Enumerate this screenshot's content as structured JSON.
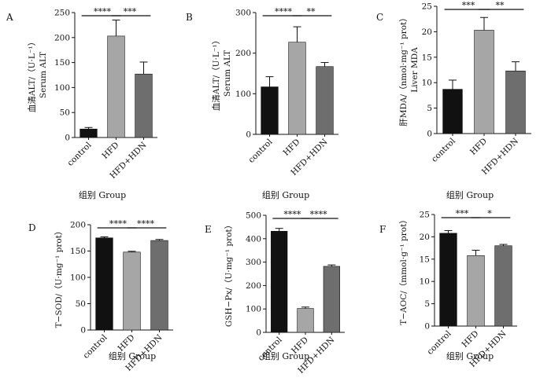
{
  "figure": {
    "bar_colors": [
      "#111111",
      "#a6a6a6",
      "#6e6e6e"
    ],
    "axis_color": "#111111"
  },
  "chart_data": [
    {
      "panel_label": "A",
      "type": "bar",
      "categories": [
        "control",
        "HFD",
        "HFD+HDN"
      ],
      "values": [
        17,
        203,
        127
      ],
      "errors": [
        3,
        32,
        24
      ],
      "ylim": [
        0,
        250
      ],
      "yticks": [
        0,
        50,
        100,
        150,
        200,
        250
      ],
      "ylabel_cn": "血清ALT/（U·L⁻¹）",
      "ylabel_en": "Serum ALT",
      "xlabel": "组别 Group",
      "significance": [
        {
          "from": 0,
          "to": 1,
          "label": "****"
        },
        {
          "from": 1,
          "to": 2,
          "label": "***"
        }
      ]
    },
    {
      "panel_label": "B",
      "type": "bar",
      "categories": [
        "control",
        "HFD",
        "HFD+HDN"
      ],
      "values": [
        117,
        227,
        167
      ],
      "errors": [
        25,
        38,
        10
      ],
      "ylim": [
        0,
        300
      ],
      "yticks": [
        0,
        100,
        200,
        300
      ],
      "ylabel_cn": "血清ALT/（U·L⁻¹）",
      "ylabel_en": "Serum ALT",
      "xlabel": "组别 Group",
      "significance": [
        {
          "from": 0,
          "to": 1,
          "label": "****"
        },
        {
          "from": 1,
          "to": 2,
          "label": "**"
        }
      ]
    },
    {
      "panel_label": "C",
      "type": "bar",
      "categories": [
        "control",
        "HFD",
        "HFD+HDN"
      ],
      "values": [
        8.7,
        20.3,
        12.3
      ],
      "errors": [
        1.8,
        2.5,
        1.8
      ],
      "ylim": [
        0,
        25
      ],
      "yticks": [
        0,
        5,
        10,
        15,
        20,
        25
      ],
      "ylabel_cn": "肝MDA/（nmol·mg⁻¹ prot）",
      "ylabel_en": "Liver MDA",
      "xlabel": "组别 Group",
      "significance": [
        {
          "from": 0,
          "to": 1,
          "label": "***"
        },
        {
          "from": 1,
          "to": 2,
          "label": "**"
        }
      ]
    },
    {
      "panel_label": "D",
      "type": "bar",
      "categories": [
        "control",
        "HFD",
        "HFD+HDN"
      ],
      "values": [
        175,
        148,
        170
      ],
      "errors": [
        2,
        1.5,
        2
      ],
      "ylim": [
        0,
        200
      ],
      "yticks": [
        0,
        50,
        100,
        150,
        200
      ],
      "ylabel_cn": "T−SOD/（U·mg⁻¹ prot）",
      "ylabel_en": "",
      "xlabel": "组别 Group",
      "significance": [
        {
          "from": 0,
          "to": 1,
          "label": "****"
        },
        {
          "from": 1,
          "to": 2,
          "label": "****"
        }
      ]
    },
    {
      "panel_label": "E",
      "type": "bar",
      "categories": [
        "control",
        "HFD",
        "HFD+HDN"
      ],
      "values": [
        432,
        102,
        282
      ],
      "errors": [
        12,
        6,
        6
      ],
      "ylim": [
        0,
        500
      ],
      "yticks": [
        0,
        100,
        200,
        300,
        400,
        500
      ],
      "ylabel_cn": "GSH−Px/（U·mg⁻¹ prot）",
      "ylabel_en": "",
      "xlabel": "组别 Group",
      "significance": [
        {
          "from": 0,
          "to": 1,
          "label": "****"
        },
        {
          "from": 1,
          "to": 2,
          "label": "****"
        }
      ]
    },
    {
      "panel_label": "F",
      "type": "bar",
      "categories": [
        "control",
        "HFD",
        "HFD+HDN"
      ],
      "values": [
        20.8,
        15.8,
        18.0
      ],
      "errors": [
        0.6,
        1.2,
        0.3
      ],
      "ylim": [
        0,
        25
      ],
      "yticks": [
        0,
        5,
        10,
        15,
        20,
        25
      ],
      "ylabel_cn": "T−AOC/（mmol·g⁻¹ prot）",
      "ylabel_en": "",
      "xlabel": "组别 Group",
      "significance": [
        {
          "from": 0,
          "to": 1,
          "label": "***"
        },
        {
          "from": 1,
          "to": 2,
          "label": "*"
        }
      ]
    }
  ]
}
